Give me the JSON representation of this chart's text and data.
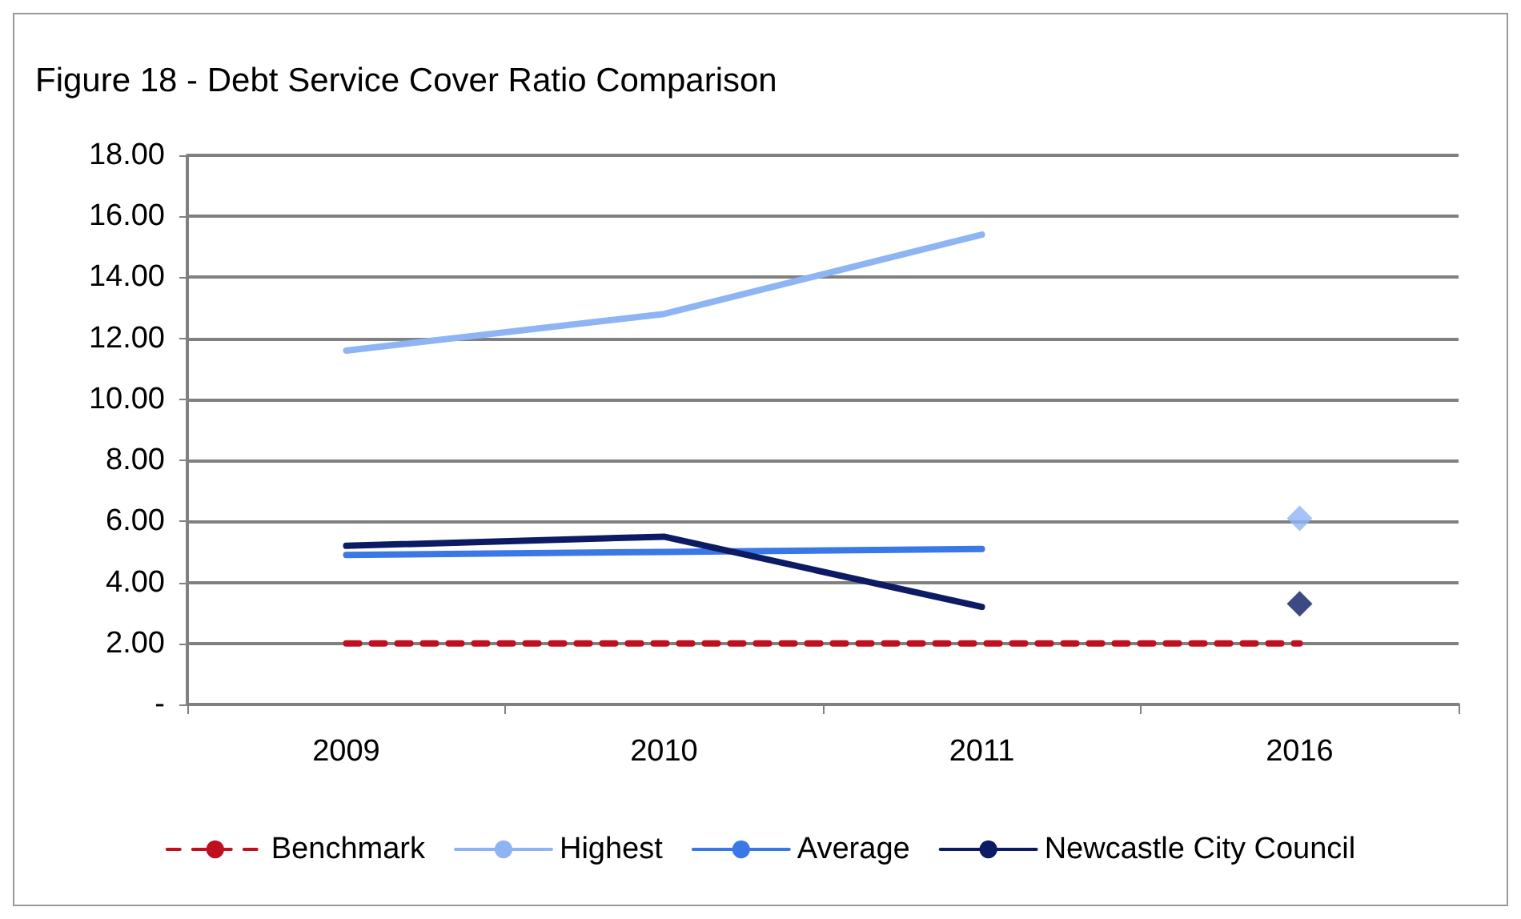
{
  "chart_data": {
    "type": "line",
    "title": "Figure 18 - Debt Service Cover Ratio Comparison",
    "categories": [
      "2009",
      "2010",
      "2011",
      "2016"
    ],
    "series": [
      {
        "name": "Benchmark",
        "color": "#c00f1e",
        "line_style": "dashed",
        "values": [
          2,
          2,
          2,
          2
        ]
      },
      {
        "name": "Highest",
        "color": "#8eb4f4",
        "values": [
          11.6,
          12.8,
          15.4,
          null
        ]
      },
      {
        "name": "Average",
        "color": "#3b78e7",
        "values": [
          4.9,
          5.0,
          5.1,
          null
        ]
      },
      {
        "name": "Newcastle City Council",
        "color": "#0c1b64",
        "values": [
          5.2,
          5.5,
          3.2,
          null
        ]
      },
      {
        "type": "scatter",
        "marker": "diamond",
        "color": "#8eb4f4",
        "values": [
          null,
          null,
          null,
          6.1
        ]
      },
      {
        "type": "scatter",
        "marker": "diamond",
        "color": "#0c1b64",
        "values": [
          null,
          null,
          null,
          3.3
        ]
      }
    ],
    "ylim": [
      0,
      18
    ],
    "yticks": [
      {
        "value": 0,
        "label": "-"
      },
      {
        "value": 2,
        "label": "2.00"
      },
      {
        "value": 4,
        "label": "4.00"
      },
      {
        "value": 6,
        "label": "6.00"
      },
      {
        "value": 8,
        "label": "8.00"
      },
      {
        "value": 10,
        "label": "10.00"
      },
      {
        "value": 12,
        "label": "12.00"
      },
      {
        "value": 14,
        "label": "14.00"
      },
      {
        "value": 16,
        "label": "16.00"
      },
      {
        "value": 18,
        "label": "18.00"
      }
    ],
    "grid": "y",
    "legend": "bottom",
    "marker": "none",
    "line_style": "solid"
  }
}
